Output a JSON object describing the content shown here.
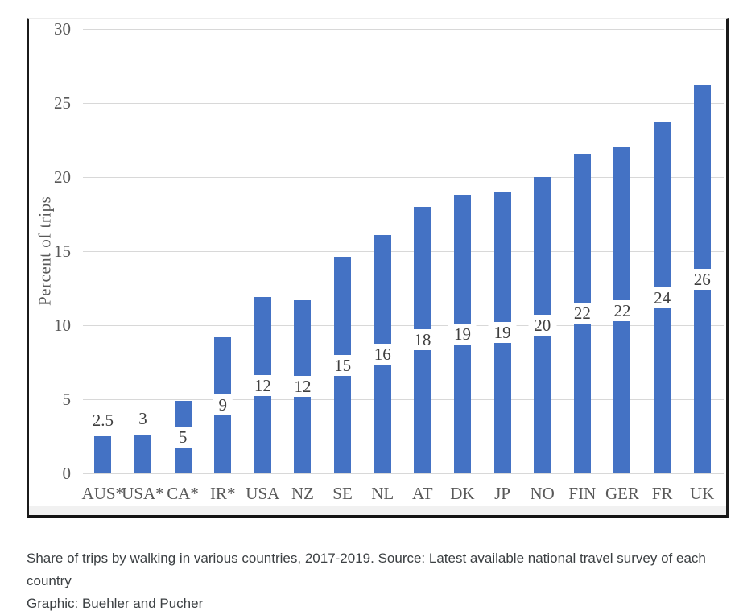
{
  "chart_data": {
    "type": "bar",
    "title": "",
    "xlabel": "",
    "ylabel": "Percent of trips",
    "ylim": [
      0,
      30
    ],
    "yticks": [
      0,
      5,
      10,
      15,
      20,
      25,
      30
    ],
    "grid": true,
    "legend": false,
    "bar_color": "#4472C4",
    "grid_color": "#d8d8d8",
    "axis_text_color": "#595959",
    "label_text_color": "#3f3f3f",
    "categories": [
      "AUS*",
      "USA*",
      "CA*",
      "IR*",
      "USA",
      "NZ",
      "SE",
      "NL",
      "AT",
      "DK",
      "JP",
      "NO",
      "FIN",
      "GER",
      "FR",
      "UK"
    ],
    "values": [
      2.5,
      2.6,
      4.9,
      9.2,
      11.9,
      11.7,
      14.6,
      16.1,
      18.0,
      18.8,
      19.0,
      20.0,
      21.6,
      22.0,
      23.7,
      26.2
    ],
    "labels": [
      "2.5",
      "3",
      "5",
      "9",
      "12",
      "12",
      "15",
      "16",
      "18",
      "19",
      "19",
      "20",
      "22",
      "22",
      "24",
      "26"
    ],
    "label_positions": [
      "above",
      "above",
      "center",
      "center",
      "center",
      "center",
      "center",
      "center",
      "center",
      "center",
      "center",
      "center",
      "center",
      "center",
      "center",
      "center"
    ]
  },
  "caption": {
    "line1": "Share of trips by walking in various countries, 2017-2019. Source: Latest available national travel survey of each country",
    "line2": "Graphic: Buehler and Pucher"
  }
}
